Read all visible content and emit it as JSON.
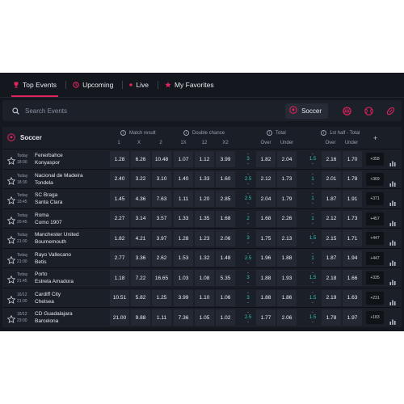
{
  "nav": {
    "items": [
      {
        "label": "Top Events",
        "icon": "trophy-icon",
        "active": true
      },
      {
        "label": "Upcoming",
        "icon": "clock-icon",
        "active": false
      },
      {
        "label": "Live",
        "icon": "live-dot-icon",
        "active": false
      },
      {
        "label": "My Favorites",
        "icon": "star-icon",
        "active": false
      }
    ]
  },
  "search": {
    "placeholder": "Search Events",
    "selected_sport": "Soccer",
    "sport_icons": [
      "soccer-ball-icon",
      "basketball-icon",
      "tennis-icon",
      "rugby-icon"
    ]
  },
  "table": {
    "sport": "Soccer",
    "groups": {
      "match_result": "Match result",
      "double_chance": "Double chance",
      "total": "Total",
      "first_half_total": "1st half - Total"
    },
    "subheaders": {
      "mr": [
        "1",
        "X",
        "2"
      ],
      "dc": [
        "1X",
        "12",
        "X2"
      ],
      "total": [
        "Over",
        "Under"
      ],
      "half": [
        "Over",
        "Under"
      ]
    },
    "plus": "+",
    "rows": [
      {
        "day": "Today",
        "time": "18:00",
        "home": "Fenerbahce",
        "away": "Konyaspor",
        "mr": [
          "1.28",
          "6.26",
          "10.48"
        ],
        "dc": [
          "1.07",
          "1.12",
          "3.99"
        ],
        "total_line": "3",
        "total": [
          "1.82",
          "2.04"
        ],
        "half_line": "1.5",
        "half": [
          "2.16",
          "1.70"
        ],
        "more": "+358"
      },
      {
        "day": "Today",
        "time": "18:30",
        "home": "Nacional de Madeira",
        "away": "Tondela",
        "mr": [
          "2.40",
          "3.22",
          "3.10"
        ],
        "dc": [
          "1.40",
          "1.33",
          "1.60"
        ],
        "total_line": "2.5",
        "total": [
          "2.12",
          "1.73"
        ],
        "half_line": "1",
        "half": [
          "2.01",
          "1.78"
        ],
        "more": "+369"
      },
      {
        "day": "Today",
        "time": "19:45",
        "home": "SC Braga",
        "away": "Santa Clara",
        "mr": [
          "1.45",
          "4.36",
          "7.63"
        ],
        "dc": [
          "1.11",
          "1.20",
          "2.85"
        ],
        "total_line": "2.5",
        "total": [
          "2.04",
          "1.79"
        ],
        "half_line": "1",
        "half": [
          "1.87",
          "1.91"
        ],
        "more": "+371"
      },
      {
        "day": "Today",
        "time": "20:45",
        "home": "Roma",
        "away": "Como 1907",
        "mr": [
          "2.27",
          "3.14",
          "3.57"
        ],
        "dc": [
          "1.33",
          "1.35",
          "1.68"
        ],
        "total_line": "2",
        "total": [
          "1.68",
          "2.26"
        ],
        "half_line": "1",
        "half": [
          "2.12",
          "1.73"
        ],
        "more": "+457"
      },
      {
        "day": "Today",
        "time": "21:00",
        "home": "Manchester United",
        "away": "Bournemouth",
        "mr": [
          "1.82",
          "4.21",
          "3.97"
        ],
        "dc": [
          "1.28",
          "1.23",
          "2.06"
        ],
        "total_line": "3",
        "total": [
          "1.75",
          "2.13"
        ],
        "half_line": "1.5",
        "half": [
          "2.15",
          "1.71"
        ],
        "more": "+447"
      },
      {
        "day": "Today",
        "time": "21:00",
        "home": "Rayo Vallecano",
        "away": "Betis",
        "mr": [
          "2.77",
          "3.36",
          "2.62"
        ],
        "dc": [
          "1.53",
          "1.32",
          "1.48"
        ],
        "total_line": "2.5",
        "total": [
          "1.96",
          "1.88"
        ],
        "half_line": "1",
        "half": [
          "1.87",
          "1.94"
        ],
        "more": "+447"
      },
      {
        "day": "Today",
        "time": "21:45",
        "home": "Porto",
        "away": "Estrela Amadora",
        "mr": [
          "1.18",
          "7.22",
          "16.65"
        ],
        "dc": [
          "1.03",
          "1.08",
          "5.35"
        ],
        "total_line": "3",
        "total": [
          "1.88",
          "1.93"
        ],
        "half_line": "1.5",
        "half": [
          "2.18",
          "1.66"
        ],
        "more": "+335"
      },
      {
        "day": "16/12",
        "time": "21:00",
        "home": "Cardiff City",
        "away": "Chelsea",
        "mr": [
          "10.51",
          "5.82",
          "1.25"
        ],
        "dc": [
          "3.99",
          "1.10",
          "1.06"
        ],
        "total_line": "3",
        "total": [
          "1.88",
          "1.86"
        ],
        "half_line": "1.5",
        "half": [
          "2.19",
          "1.63"
        ],
        "more": "+231"
      },
      {
        "day": "16/12",
        "time": "23:00",
        "home": "CD Guadalajara",
        "away": "Barcelona",
        "mr": [
          "21.00",
          "9.88",
          "1.11"
        ],
        "dc": [
          "7.36",
          "1.05",
          "1.02"
        ],
        "total_line": "2.5",
        "total": [
          "1.77",
          "2.06"
        ],
        "half_line": "1.5",
        "half": [
          "1.78",
          "1.97"
        ],
        "more": "+183"
      }
    ]
  },
  "colors": {
    "accent": "#e0245e",
    "line": "#2fc6b8",
    "background": "#14171e"
  }
}
